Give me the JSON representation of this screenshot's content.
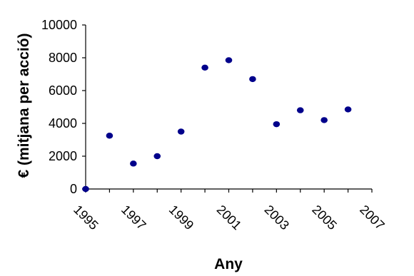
{
  "chart_data": {
    "type": "scatter",
    "title": "",
    "xlabel": "Any",
    "ylabel": "€ (mitjana per acció)",
    "x": [
      1995,
      1996,
      1997,
      1998,
      1999,
      2000,
      2001,
      2002,
      2003,
      2004,
      2005,
      2006
    ],
    "y": [
      0,
      3250,
      1550,
      2000,
      3500,
      7400,
      7850,
      6700,
      3950,
      4800,
      4200,
      4850
    ],
    "xlim": [
      1995,
      2007
    ],
    "ylim": [
      0,
      10000
    ],
    "x_ticks": [
      "1995",
      "1997",
      "1999",
      "2001",
      "2003",
      "2005",
      "2007"
    ],
    "y_ticks": [
      "0",
      "2000",
      "4000",
      "6000",
      "8000",
      "10000"
    ],
    "marker_color": "#00008b",
    "grid": false,
    "legend": "none"
  }
}
